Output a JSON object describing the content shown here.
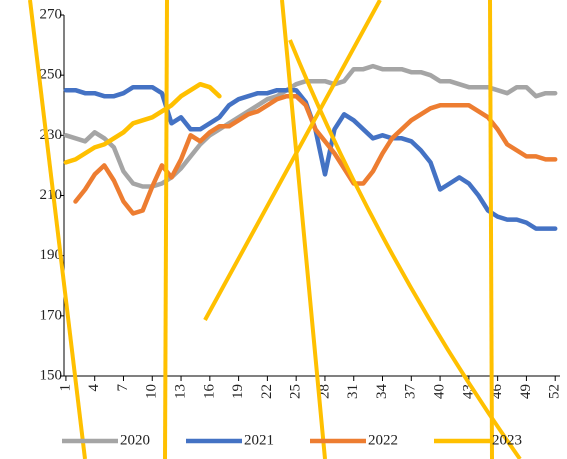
{
  "chart_data": {
    "type": "line",
    "x": [
      1,
      2,
      3,
      4,
      5,
      6,
      7,
      8,
      9,
      10,
      11,
      12,
      13,
      14,
      15,
      16,
      17,
      18,
      19,
      20,
      21,
      22,
      23,
      24,
      25,
      26,
      27,
      28,
      29,
      30,
      31,
      32,
      33,
      34,
      35,
      36,
      37,
      38,
      39,
      40,
      41,
      42,
      43,
      44,
      45,
      46,
      47,
      48,
      49,
      50,
      51,
      52
    ],
    "xlim": [
      0.8,
      52.5
    ],
    "xticks": [
      1,
      4,
      7,
      10,
      13,
      16,
      19,
      22,
      25,
      28,
      31,
      34,
      37,
      40,
      43,
      46,
      49,
      52
    ],
    "ylim": [
      150,
      270
    ],
    "yticks": [
      150,
      170,
      190,
      210,
      230,
      250,
      270
    ],
    "legend": "bottom",
    "series": [
      {
        "name": "2020",
        "color": "#a5a5a5",
        "values": [
          230,
          229,
          228,
          231,
          229,
          226,
          218,
          214,
          213,
          213,
          214,
          216,
          219,
          223,
          227,
          230,
          232,
          234,
          236,
          238,
          240,
          242,
          243,
          245,
          247,
          248,
          248,
          248,
          247,
          248,
          252,
          252,
          253,
          252,
          252,
          252,
          251,
          251,
          250,
          248,
          248,
          247,
          246,
          246,
          246,
          245,
          244,
          246,
          246,
          243,
          244,
          244
        ]
      },
      {
        "name": "2021",
        "color": "#4472c4",
        "values": [
          245,
          245,
          244,
          244,
          243,
          243,
          244,
          246,
          246,
          246,
          244,
          234,
          236,
          232,
          232,
          234,
          236,
          240,
          242,
          243,
          244,
          244,
          245,
          245,
          245,
          241,
          232,
          217,
          232,
          237,
          235,
          232,
          229,
          230,
          229,
          229,
          228,
          225,
          221,
          212,
          214,
          216,
          214,
          210,
          205,
          203,
          202,
          202,
          201,
          199,
          199,
          199
        ]
      },
      {
        "name": "2022",
        "color": "#ed7d31",
        "values": [
          null,
          208,
          212,
          217,
          220,
          215,
          208,
          204,
          205,
          213,
          220,
          216,
          222,
          230,
          228,
          231,
          233,
          233,
          235,
          237,
          238,
          240,
          242,
          243,
          243,
          240,
          232,
          228,
          224,
          219,
          214,
          214,
          218,
          224,
          229,
          232,
          235,
          237,
          239,
          240,
          240,
          240,
          240,
          238,
          236,
          232,
          227,
          225,
          223,
          223,
          222,
          222
        ]
      },
      {
        "name": "2023",
        "color": "#ffc000",
        "values": [
          221,
          222,
          224,
          226,
          227,
          229,
          231,
          234,
          235,
          236,
          238,
          240,
          243,
          245,
          247,
          246,
          243,
          null,
          null,
          null,
          null,
          null,
          null,
          null,
          null,
          null,
          null,
          null,
          null,
          null,
          null,
          null,
          null,
          null,
          null,
          null,
          null,
          null,
          null,
          null,
          null,
          null,
          null,
          null,
          null,
          null,
          null,
          null,
          null,
          null,
          null,
          null
        ]
      }
    ]
  }
}
